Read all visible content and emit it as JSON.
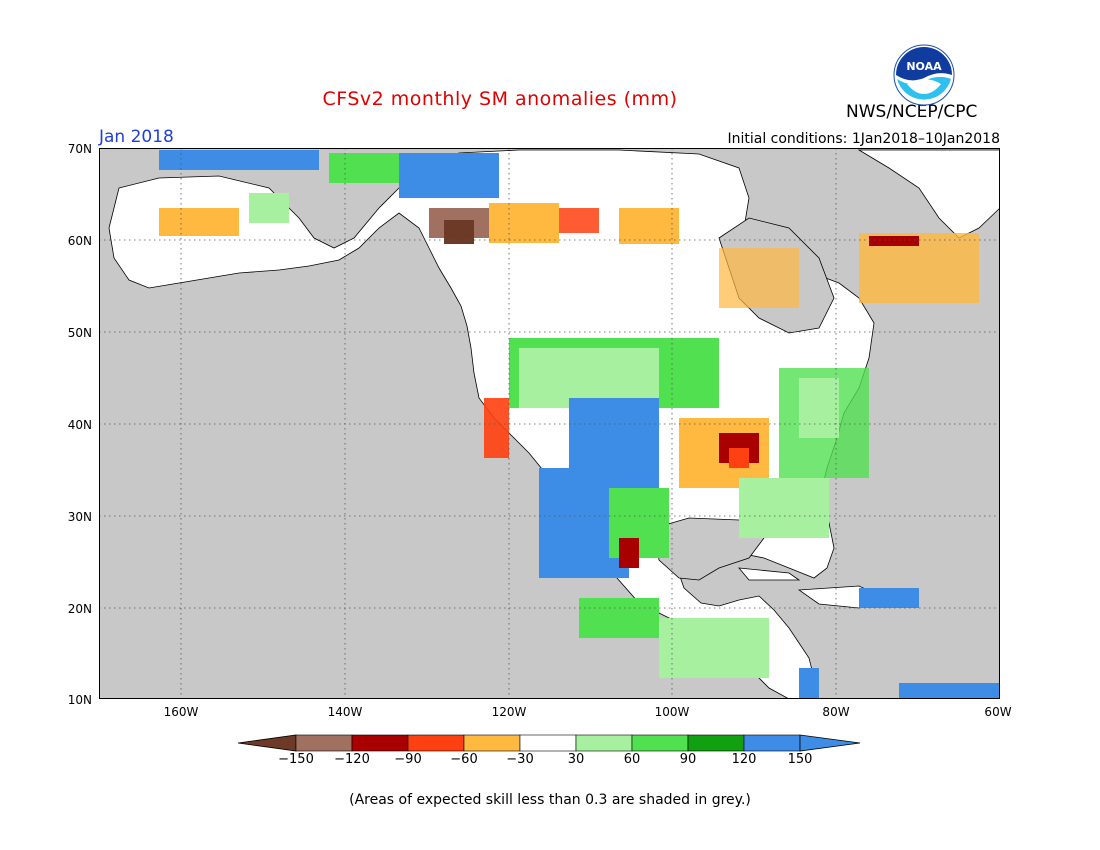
{
  "header": {
    "title": "CFSv2 monthly SM anomalies (mm)",
    "date": "Jan 2018",
    "initial_conditions": "Initial conditions: 1Jan2018–10Jan2018",
    "agency": "NWS/NCEP/CPC",
    "logo_text": "NOAA"
  },
  "map": {
    "lat_labels": [
      "70N",
      "60N",
      "50N",
      "40N",
      "30N",
      "20N",
      "10N"
    ],
    "lon_labels": [
      "160W",
      "140W",
      "120W",
      "100W",
      "80W",
      "60W"
    ],
    "lat_range": [
      10,
      70
    ],
    "lon_range": [
      -170,
      -60
    ],
    "ocean_color": "#c8c8c8",
    "land_color": "#ffffff",
    "gridlines": true
  },
  "colorbar": {
    "labels": [
      "−150",
      "−120",
      "−90",
      "−60",
      "−30",
      "30",
      "60",
      "90",
      "120",
      "150"
    ],
    "colors": [
      "#6e3a28",
      "#a07060",
      "#a80000",
      "#ff4010",
      "#ffb840",
      "#ffffff",
      "#a6f0a0",
      "#50e050",
      "#10a010",
      "#3d8ce6",
      "#3d8ce6"
    ]
  },
  "footnote": "(Areas of expected skill less than 0.3 are shaded in grey.)"
}
